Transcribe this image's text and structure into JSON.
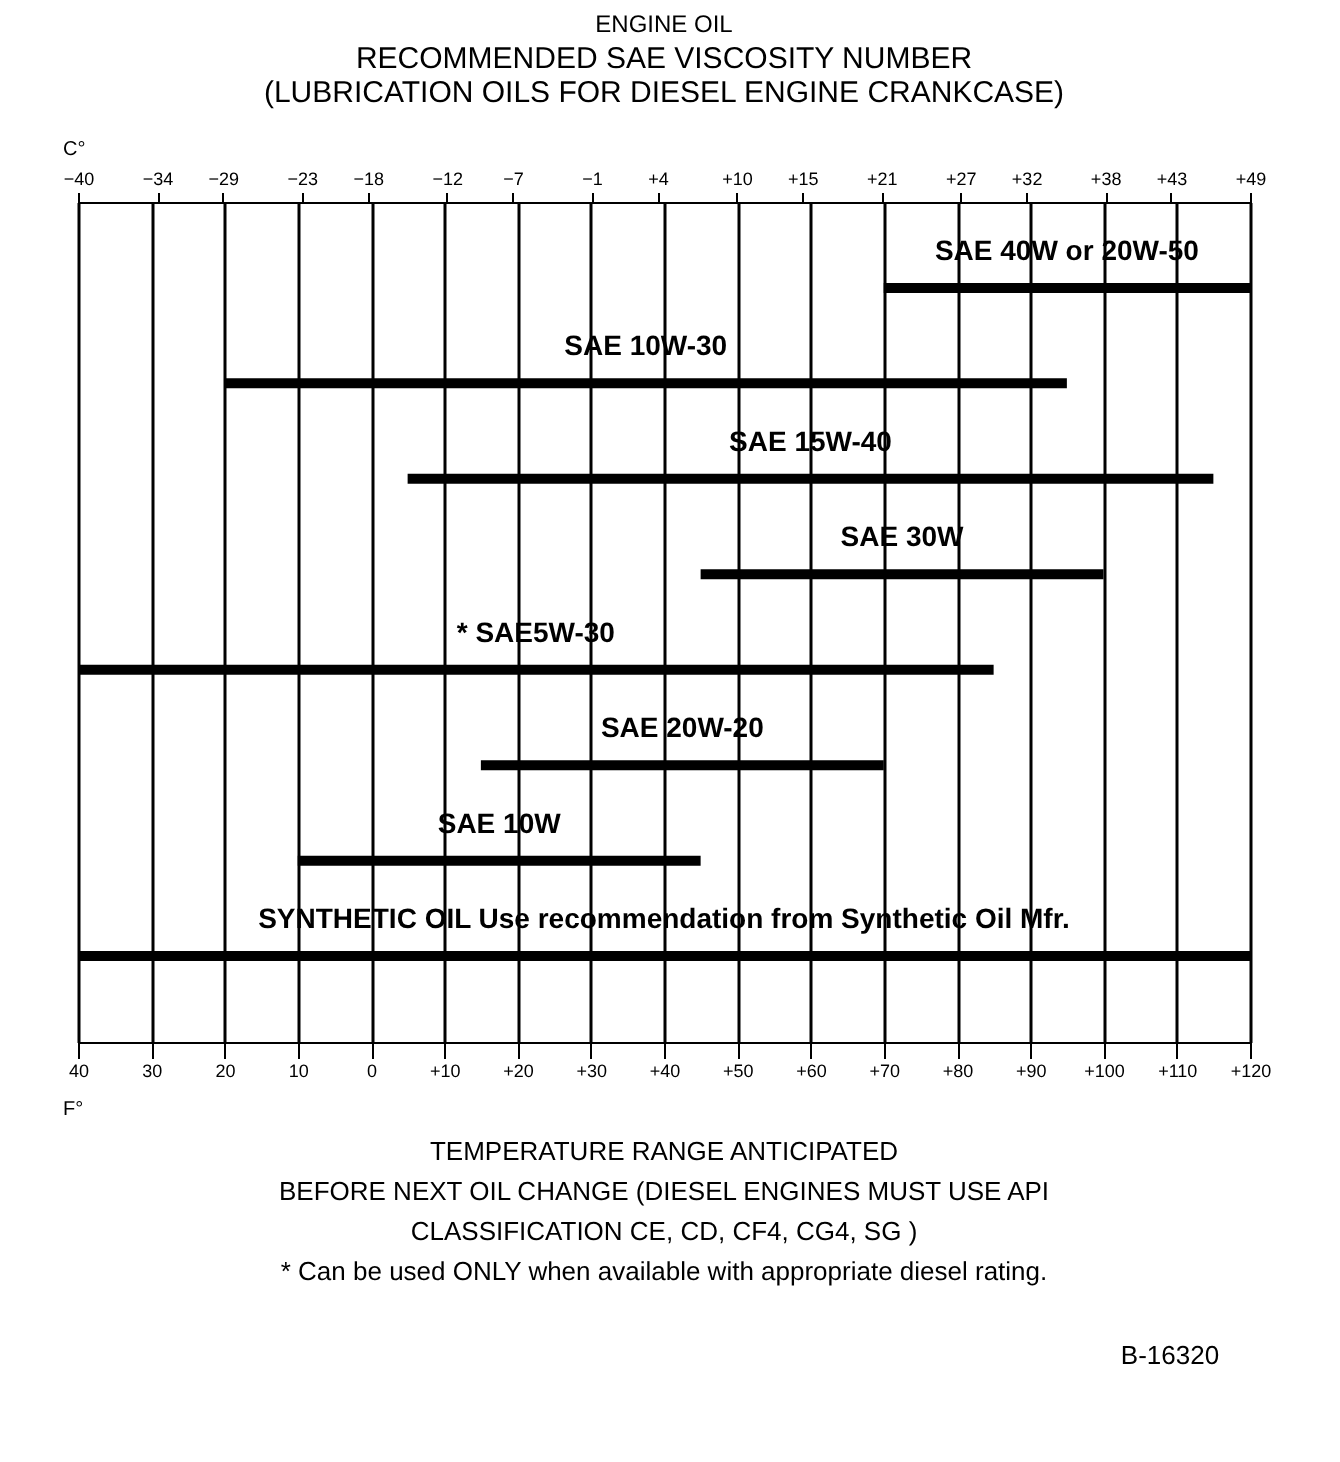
{
  "chart_data": {
    "type": "bar",
    "orientation": "horizontal",
    "title": "ENGINE OIL",
    "subtitle": "RECOMMENDED SAE VISCOSITY NUMBER\n(LUBRICATION OILS FOR DIESEL ENGINE CRANKCASE)",
    "categories": [
      "SAE 40W or 20W-50",
      "SAE 10W-30",
      "SAE 15W-40",
      "SAE 30W",
      "* SAE5W-30",
      "SAE 20W-20",
      "SAE 10W",
      "SYNTHETIC OIL Use recommendation from Synthetic Oil Mfr."
    ],
    "base": [
      70,
      -20,
      5,
      45,
      -40,
      15,
      -10,
      -40
    ],
    "values": [
      50,
      115,
      110,
      55,
      125,
      55,
      55,
      160
    ],
    "color": "#000000",
    "xlabel": "F°",
    "xlim": [
      -40,
      120
    ],
    "xticks": [
      {
        "value": -40,
        "label": "40"
      },
      {
        "value": -30,
        "label": "30"
      },
      {
        "value": -20,
        "label": "20"
      },
      {
        "value": -10,
        "label": "10"
      },
      0,
      {
        "value": 10,
        "label": "+10"
      },
      {
        "value": 20,
        "label": "+20"
      },
      {
        "value": 30,
        "label": "+30"
      },
      {
        "value": 40,
        "label": "+40"
      },
      {
        "value": 50,
        "label": "+50"
      },
      {
        "value": 60,
        "label": "+60"
      },
      {
        "value": 70,
        "label": "+70"
      },
      {
        "value": 80,
        "label": "+80"
      },
      {
        "value": 90,
        "label": "+90"
      },
      {
        "value": 100,
        "label": "+100"
      },
      {
        "value": 110,
        "label": "+110"
      },
      {
        "value": 120,
        "label": "+120"
      }
    ],
    "x2label": "C°",
    "x2lim": [
      -40,
      49
    ],
    "x2ticks": [
      -40,
      -34,
      -29,
      -23,
      -18,
      -12,
      -7,
      -1,
      {
        "value": 4,
        "label": "+4"
      },
      {
        "value": 10,
        "label": "+10"
      },
      {
        "value": 15,
        "label": "+15"
      },
      {
        "value": 21,
        "label": "+21"
      },
      {
        "value": 27,
        "label": "+27"
      },
      {
        "value": 32,
        "label": "+32"
      },
      {
        "value": 38,
        "label": "+38"
      },
      {
        "value": 43,
        "label": "+43"
      },
      {
        "value": 49,
        "label": "+49"
      }
    ],
    "grid": "x",
    "annotations": [
      "TEMPERATURE RANGE ANTICIPATED\nBEFORE NEXT OIL CHANGE (DIESEL ENGINES MUST USE API\nCLASSIFICATION CE, CD, CF4, CG4, SG )",
      "* Can be used ONLY when available with appropriate diesel rating.",
      "B-16320"
    ]
  }
}
